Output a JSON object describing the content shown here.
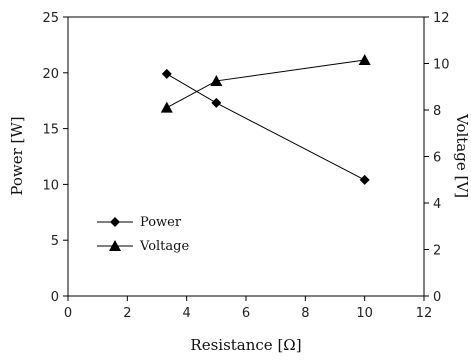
{
  "chart_data": {
    "type": "line",
    "xlabel": "Resistance [Ω]",
    "ylabel": "Power [W]",
    "y2label": "Voltage [V]",
    "xlim": [
      0,
      12
    ],
    "ylim": [
      0,
      25
    ],
    "y2lim": [
      0,
      12
    ],
    "xticks": [
      "0",
      "2",
      "4",
      "6",
      "8",
      "10",
      "12"
    ],
    "yticks": [
      "0",
      "5",
      "10",
      "15",
      "20",
      "25"
    ],
    "y2ticks": [
      "0",
      "2",
      "4",
      "6",
      "8",
      "10",
      "12"
    ],
    "grid": false,
    "legend_position": "bottom-left",
    "series": [
      {
        "name": "Power",
        "axis": "left",
        "marker": "diamond",
        "color": "#000000",
        "x": [
          3.33,
          5,
          10
        ],
        "y": [
          19.9,
          17.3,
          10.4
        ]
      },
      {
        "name": "Voltage",
        "axis": "right",
        "marker": "triangle",
        "color": "#000000",
        "x": [
          3.33,
          5,
          10
        ],
        "y": [
          8.1,
          9.25,
          10.15
        ]
      }
    ]
  }
}
